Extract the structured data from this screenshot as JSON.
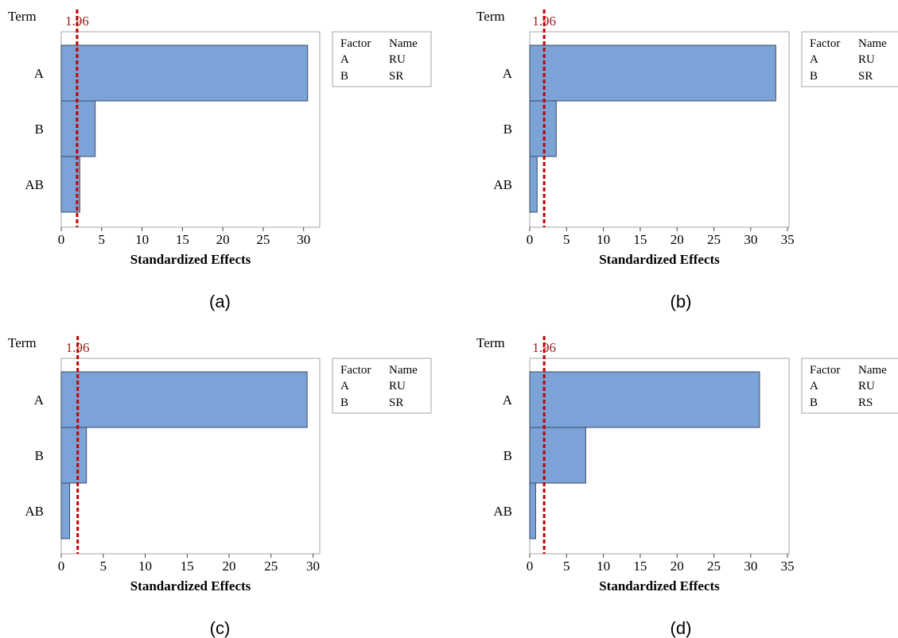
{
  "panels_common": {
    "term_label": "Term",
    "xlabel": "Standardized Effects",
    "reference_label": "1.96",
    "reference_value": 1.96,
    "legend_header": [
      "Factor",
      "Name"
    ],
    "bar_color": "#7ba3d8",
    "reference_color": "#c00000"
  },
  "chart_data": [
    {
      "type": "bar",
      "panel_label": "(a)",
      "categories": [
        "A",
        "B",
        "AB"
      ],
      "values": [
        30.5,
        4.2,
        2.3
      ],
      "xlim": [
        0,
        32
      ],
      "xticks": [
        "0",
        "5",
        "10",
        "15",
        "20",
        "25",
        "30"
      ],
      "reference": 1.96,
      "legend": [
        [
          "A",
          "RU"
        ],
        [
          "B",
          "SR"
        ]
      ]
    },
    {
      "type": "bar",
      "panel_label": "(b)",
      "categories": [
        "A",
        "B",
        "AB"
      ],
      "values": [
        33.4,
        3.6,
        1.0
      ],
      "xlim": [
        0,
        35.2
      ],
      "xticks": [
        "0",
        "5",
        "10",
        "15",
        "20",
        "25",
        "30",
        "35"
      ],
      "reference": 1.96,
      "legend": [
        [
          "A",
          "RU"
        ],
        [
          "B",
          "SR"
        ]
      ]
    },
    {
      "type": "bar",
      "panel_label": "(c)",
      "categories": [
        "A",
        "B",
        "AB"
      ],
      "values": [
        29.3,
        3.0,
        1.0
      ],
      "xlim": [
        0,
        30.8
      ],
      "xticks": [
        "0",
        "5",
        "10",
        "15",
        "20",
        "25",
        "30"
      ],
      "reference": 1.96,
      "legend": [
        [
          "A",
          "RU"
        ],
        [
          "B",
          "SR"
        ]
      ]
    },
    {
      "type": "bar",
      "panel_label": "(d)",
      "categories": [
        "A",
        "B",
        "AB"
      ],
      "values": [
        31.2,
        7.6,
        0.8
      ],
      "xlim": [
        0,
        35.2
      ],
      "xticks": [
        "0",
        "5",
        "10",
        "15",
        "20",
        "25",
        "30",
        "35"
      ],
      "reference": 1.96,
      "legend": [
        [
          "A",
          "RU"
        ],
        [
          "B",
          "RS"
        ]
      ]
    }
  ]
}
